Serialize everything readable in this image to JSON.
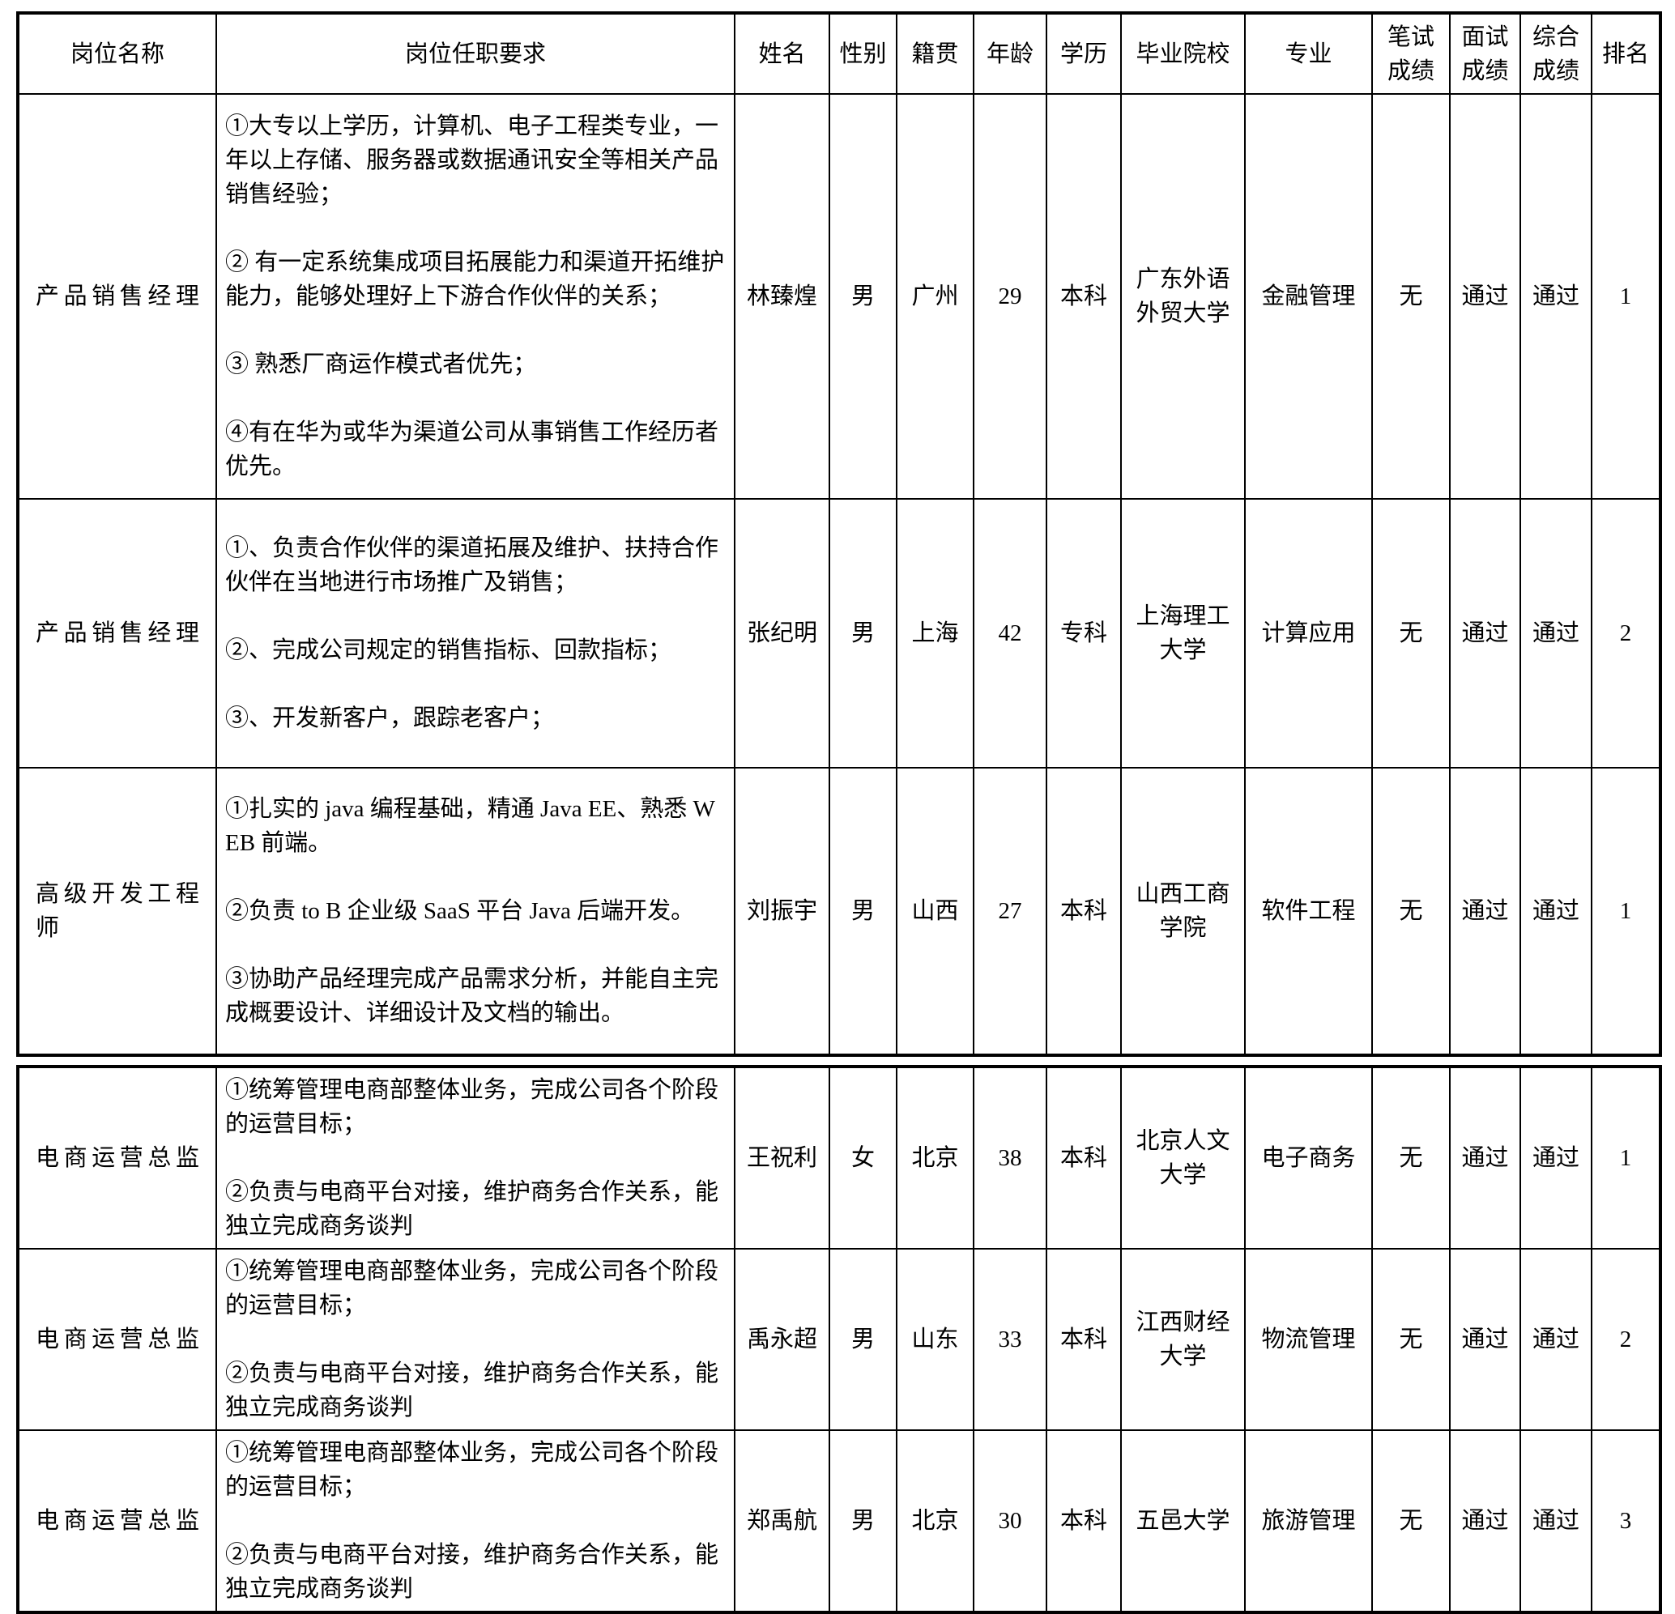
{
  "table": {
    "headers": [
      "岗位名称",
      "岗位任职要求",
      "姓名",
      "性别",
      "籍贯",
      "年龄",
      "学历",
      "毕业院校",
      "专业",
      "笔试成绩",
      "面试成绩",
      "综合成绩",
      "排名"
    ],
    "sections": [
      {
        "rows": [
          {
            "position": "产品销售经理",
            "requirements": [
              "①大专以上学历，计算机、电子工程类专业，一年以上存储、服务器或数据通讯安全等相关产品销售经验；",
              "② 有一定系统集成项目拓展能力和渠道开拓维护能力，能够处理好上下游合作伙伴的关系；",
              "③ 熟悉厂商运作模式者优先；",
              "④有在华为或华为渠道公司从事销售工作经历者优先。"
            ],
            "name": "林臻煌",
            "gender": "男",
            "native_place": "广州",
            "age": "29",
            "education": "本科",
            "school": "广东外语外贸大学",
            "major": "金融管理",
            "written_score": "无",
            "interview_score": "通过",
            "overall_score": "通过",
            "rank": "1"
          },
          {
            "position": "产品销售经理",
            "requirements": [
              "①、负责合作伙伴的渠道拓展及维护、扶持合作伙伴在当地进行市场推广及销售；",
              "②、完成公司规定的销售指标、回款指标；",
              "③、开发新客户，跟踪老客户；"
            ],
            "name": "张纪明",
            "gender": "男",
            "native_place": "上海",
            "age": "42",
            "education": "专科",
            "school": "上海理工大学",
            "major": "计算应用",
            "written_score": "无",
            "interview_score": "通过",
            "overall_score": "通过",
            "rank": "2"
          },
          {
            "position": "高级开发工程师",
            "requirements": [
              "①扎实的 java 编程基础，精通 Java EE、熟悉 WEB 前端。",
              "②负责 to B 企业级 SaaS 平台 Java 后端开发。",
              "③协助产品经理完成产品需求分析，并能自主完成概要设计、详细设计及文档的输出。"
            ],
            "name": "刘振宇",
            "gender": "男",
            "native_place": "山西",
            "age": "27",
            "education": "本科",
            "school": "山西工商学院",
            "major": "软件工程",
            "written_score": "无",
            "interview_score": "通过",
            "overall_score": "通过",
            "rank": "1"
          }
        ]
      },
      {
        "rows": [
          {
            "position": "电商运营总监",
            "requirements": [
              "①统筹管理电商部整体业务，完成公司各个阶段的运营目标；",
              "②负责与电商平台对接，维护商务合作关系，能独立完成商务谈判"
            ],
            "name": "王祝利",
            "gender": "女",
            "native_place": "北京",
            "age": "38",
            "education": "本科",
            "school": "北京人文大学",
            "major": "电子商务",
            "written_score": "无",
            "interview_score": "通过",
            "overall_score": "通过",
            "rank": "1"
          },
          {
            "position": "电商运营总监",
            "requirements": [
              "①统筹管理电商部整体业务，完成公司各个阶段的运营目标；",
              "②负责与电商平台对接，维护商务合作关系，能独立完成商务谈判"
            ],
            "name": "禹永超",
            "gender": "男",
            "native_place": "山东",
            "age": "33",
            "education": "本科",
            "school": "江西财经大学",
            "major": "物流管理",
            "written_score": "无",
            "interview_score": "通过",
            "overall_score": "通过",
            "rank": "2"
          },
          {
            "position": "电商运营总监",
            "requirements": [
              "①统筹管理电商部整体业务，完成公司各个阶段的运营目标；",
              "②负责与电商平台对接，维护商务合作关系，能独立完成商务谈判"
            ],
            "name": "郑禹航",
            "gender": "男",
            "native_place": "北京",
            "age": "30",
            "education": "本科",
            "school": "五邑大学",
            "major": "旅游管理",
            "written_score": "无",
            "interview_score": "通过",
            "overall_score": "通过",
            "rank": "3"
          }
        ]
      }
    ]
  }
}
